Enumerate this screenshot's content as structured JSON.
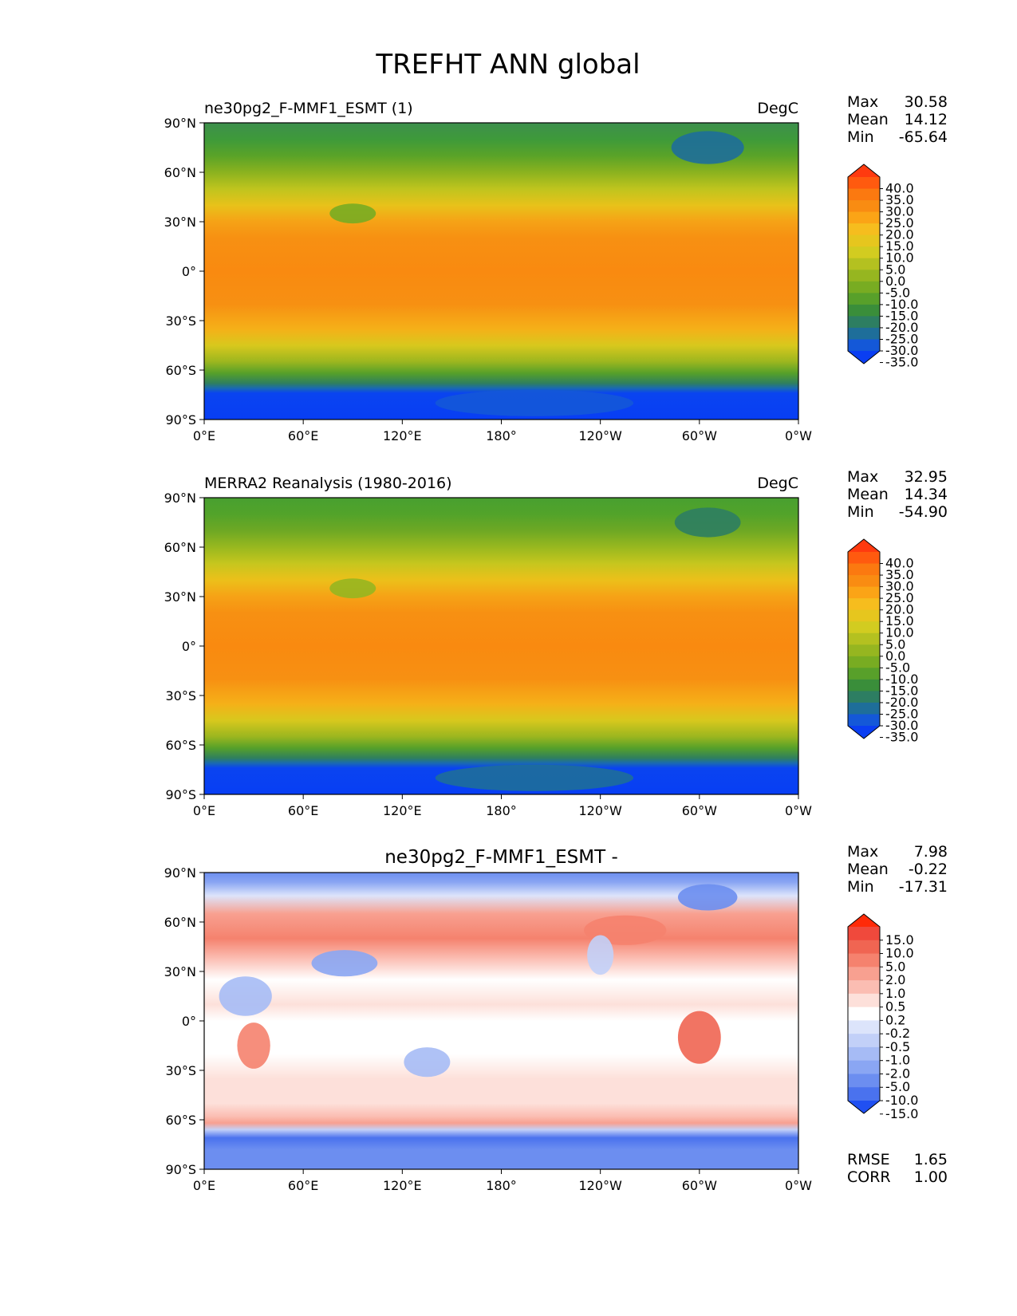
{
  "title": "TREFHT ANN global",
  "lat_ticks": [
    "90°N",
    "60°N",
    "30°N",
    "0°",
    "30°S",
    "60°S",
    "90°S"
  ],
  "lon_ticks": [
    "0°E",
    "60°E",
    "120°E",
    "180°",
    "120°W",
    "60°W",
    "0°W"
  ],
  "chart_data": [
    {
      "type": "heatmap",
      "title_left": "ne30pg2_F-MMF1_ESMT (1)",
      "title_center": "",
      "title_right": "DegC",
      "stats": [
        {
          "label": "Max",
          "value": "30.58"
        },
        {
          "label": "Mean",
          "value": "14.12"
        },
        {
          "label": "Min",
          "value": "-65.64"
        }
      ],
      "colorbar": {
        "labels": [
          "40.0",
          "35.0",
          "30.0",
          "25.0",
          "20.0",
          "15.0",
          "10.0",
          "5.0",
          "0.0",
          "-5.0",
          "-10.0",
          "-15.0",
          "-20.0",
          "-25.0",
          "-30.0",
          "-35.0"
        ],
        "colors": [
          "#ff3a0f",
          "#ff5a0f",
          "#fb7910",
          "#f98c12",
          "#fba416",
          "#f6bd1e",
          "#e6c61e",
          "#d2cc20",
          "#b4c120",
          "#96b620",
          "#78ac22",
          "#58a02a",
          "#3a8e3a",
          "#2d7e62",
          "#1e6e9a",
          "#1458d8",
          "#0a3ef2"
        ],
        "extend": "both"
      },
      "xlim": [
        0,
        360
      ],
      "ylim": [
        -90,
        90
      ],
      "field_stops": [
        {
          "lat": 90,
          "color": "#3d8f4c"
        },
        {
          "lat": 80,
          "color": "#3e9a3a"
        },
        {
          "lat": 70,
          "color": "#5aa328"
        },
        {
          "lat": 60,
          "color": "#8bb21f"
        },
        {
          "lat": 50,
          "color": "#bfc41e"
        },
        {
          "lat": 40,
          "color": "#e8c21a"
        },
        {
          "lat": 30,
          "color": "#f6a216"
        },
        {
          "lat": 20,
          "color": "#f79012"
        },
        {
          "lat": 0,
          "color": "#f98a10"
        },
        {
          "lat": -20,
          "color": "#f79012"
        },
        {
          "lat": -35,
          "color": "#f5b018"
        },
        {
          "lat": -45,
          "color": "#d8c81d"
        },
        {
          "lat": -55,
          "color": "#9bb61f"
        },
        {
          "lat": -62,
          "color": "#55a02a"
        },
        {
          "lat": -68,
          "color": "#2f7f5e"
        },
        {
          "lat": -71,
          "color": "#1a6ab0"
        },
        {
          "lat": -74,
          "color": "#0a44f0"
        },
        {
          "lat": -90,
          "color": "#083ef4"
        }
      ],
      "anomalies": [
        {
          "lon": 305,
          "lat": 75,
          "rx": 22,
          "ry": 10,
          "color": "#1e6e9a"
        },
        {
          "lon": 90,
          "lat": 35,
          "rx": 14,
          "ry": 6,
          "color": "#78ac22"
        },
        {
          "lon": 200,
          "lat": -80,
          "rx": 60,
          "ry": 8,
          "color": "#1458d8"
        }
      ]
    },
    {
      "type": "heatmap",
      "title_left": "MERRA2 Reanalysis (1980-2016)",
      "title_center": "",
      "title_right": "DegC",
      "stats": [
        {
          "label": "Max",
          "value": "32.95"
        },
        {
          "label": "Mean",
          "value": "14.34"
        },
        {
          "label": "Min",
          "value": "-54.90"
        }
      ],
      "colorbar": {
        "labels": [
          "40.0",
          "35.0",
          "30.0",
          "25.0",
          "20.0",
          "15.0",
          "10.0",
          "5.0",
          "0.0",
          "-5.0",
          "-10.0",
          "-15.0",
          "-20.0",
          "-25.0",
          "-30.0",
          "-35.0"
        ],
        "colors": [
          "#ff3a0f",
          "#ff5a0f",
          "#fb7910",
          "#f98c12",
          "#fba416",
          "#f6bd1e",
          "#e6c61e",
          "#d2cc20",
          "#b4c120",
          "#96b620",
          "#78ac22",
          "#58a02a",
          "#3a8e3a",
          "#2d7e62",
          "#1e6e9a",
          "#1458d8",
          "#0a3ef2"
        ],
        "extend": "both"
      },
      "xlim": [
        0,
        360
      ],
      "ylim": [
        -90,
        90
      ],
      "field_stops": [
        {
          "lat": 90,
          "color": "#48a030"
        },
        {
          "lat": 80,
          "color": "#52a32a"
        },
        {
          "lat": 70,
          "color": "#6ea824"
        },
        {
          "lat": 60,
          "color": "#98b81f"
        },
        {
          "lat": 50,
          "color": "#c6c61e"
        },
        {
          "lat": 40,
          "color": "#ecc01a"
        },
        {
          "lat": 30,
          "color": "#f6a216"
        },
        {
          "lat": 20,
          "color": "#f79012"
        },
        {
          "lat": 0,
          "color": "#f98a10"
        },
        {
          "lat": -20,
          "color": "#f79012"
        },
        {
          "lat": -35,
          "color": "#f5b018"
        },
        {
          "lat": -45,
          "color": "#d8c81d"
        },
        {
          "lat": -55,
          "color": "#9bb61f"
        },
        {
          "lat": -62,
          "color": "#55a02a"
        },
        {
          "lat": -68,
          "color": "#2f7f5e"
        },
        {
          "lat": -71,
          "color": "#1a6ab0"
        },
        {
          "lat": -74,
          "color": "#0a44f0"
        },
        {
          "lat": -90,
          "color": "#083ef4"
        }
      ],
      "anomalies": [
        {
          "lon": 305,
          "lat": 75,
          "rx": 20,
          "ry": 9,
          "color": "#2d7e62"
        },
        {
          "lon": 90,
          "lat": 35,
          "rx": 14,
          "ry": 6,
          "color": "#96b620"
        },
        {
          "lon": 200,
          "lat": -80,
          "rx": 60,
          "ry": 8,
          "color": "#1e6e9a"
        }
      ]
    },
    {
      "type": "heatmap",
      "title_left": "",
      "title_center": "ne30pg2_F-MMF1_ESMT -",
      "title_right": "",
      "stats": [
        {
          "label": "Max",
          "value": "7.98"
        },
        {
          "label": "Mean",
          "value": "-0.22"
        },
        {
          "label": "Min",
          "value": "-17.31"
        }
      ],
      "metrics": [
        {
          "label": "RMSE",
          "value": "1.65"
        },
        {
          "label": "CORR",
          "value": "1.00"
        }
      ],
      "colorbar": {
        "labels": [
          "15.0",
          "10.0",
          "5.0",
          "2.0",
          "1.0",
          "0.5",
          "0.2",
          "-0.2",
          "-0.5",
          "-1.0",
          "-2.0",
          "-5.0",
          "-10.0",
          "-15.0"
        ],
        "colors": [
          "#ff2a08",
          "#f0493c",
          "#f06552",
          "#f5826e",
          "#f8a090",
          "#fbbdb2",
          "#fde0da",
          "#ffffff",
          "#dce4fb",
          "#c2d0f8",
          "#a6bbf5",
          "#8aa6f3",
          "#6c8ef0",
          "#4a72ee",
          "#2050f2"
        ],
        "extend": "both"
      },
      "xlim": [
        0,
        360
      ],
      "ylim": [
        -90,
        90
      ],
      "field_stops": [
        {
          "lat": 90,
          "color": "#6c8ef0"
        },
        {
          "lat": 84,
          "color": "#8aa6f3"
        },
        {
          "lat": 76,
          "color": "#dce4fb"
        },
        {
          "lat": 65,
          "color": "#f8a090"
        },
        {
          "lat": 50,
          "color": "#f5826e"
        },
        {
          "lat": 38,
          "color": "#fbbdb2"
        },
        {
          "lat": 25,
          "color": "#ffffff"
        },
        {
          "lat": 10,
          "color": "#fde0da"
        },
        {
          "lat": 0,
          "color": "#ffffff"
        },
        {
          "lat": -20,
          "color": "#ffffff"
        },
        {
          "lat": -35,
          "color": "#fde0da"
        },
        {
          "lat": -50,
          "color": "#fde0da"
        },
        {
          "lat": -58,
          "color": "#fbbdb2"
        },
        {
          "lat": -62,
          "color": "#f8a090"
        },
        {
          "lat": -66,
          "color": "#c2d0f8"
        },
        {
          "lat": -71,
          "color": "#4a72ee"
        },
        {
          "lat": -78,
          "color": "#6c8ef0"
        },
        {
          "lat": -90,
          "color": "#6c8ef0"
        }
      ],
      "anomalies": [
        {
          "lon": 25,
          "lat": 15,
          "rx": 16,
          "ry": 12,
          "color": "#a6bbf5"
        },
        {
          "lon": 30,
          "lat": -15,
          "rx": 10,
          "ry": 14,
          "color": "#f5826e"
        },
        {
          "lon": 85,
          "lat": 35,
          "rx": 20,
          "ry": 8,
          "color": "#8aa6f3"
        },
        {
          "lon": 135,
          "lat": -25,
          "rx": 14,
          "ry": 9,
          "color": "#a6bbf5"
        },
        {
          "lon": 300,
          "lat": -10,
          "rx": 13,
          "ry": 16,
          "color": "#f06552"
        },
        {
          "lon": 255,
          "lat": 55,
          "rx": 25,
          "ry": 9,
          "color": "#f5826e"
        },
        {
          "lon": 305,
          "lat": 75,
          "rx": 18,
          "ry": 8,
          "color": "#6c8ef0"
        },
        {
          "lon": 240,
          "lat": 40,
          "rx": 8,
          "ry": 12,
          "color": "#c2d0f8"
        }
      ]
    }
  ]
}
